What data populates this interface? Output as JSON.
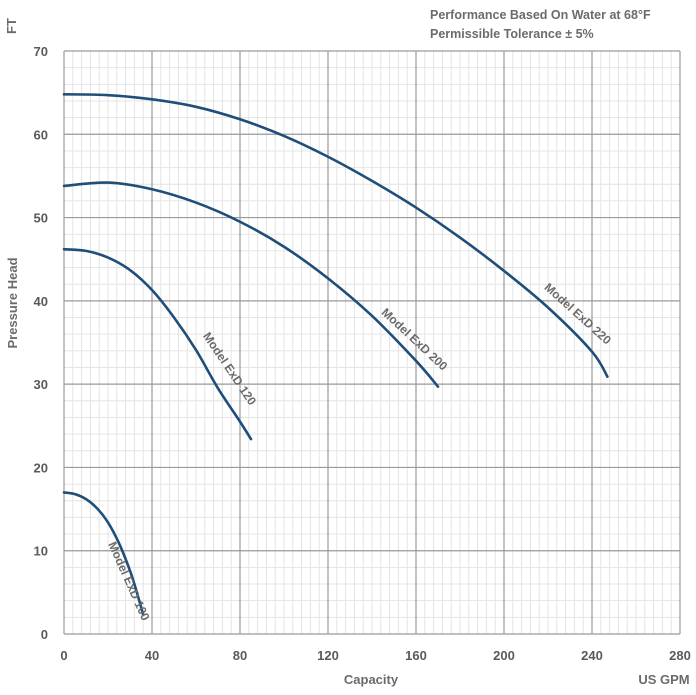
{
  "chart_data": {
    "type": "line",
    "notes": [
      "Performance Based On Water at 68°F",
      "Permissible Tolerance ± 5%"
    ],
    "xlabel": "Capacity",
    "x_unit": "US GPM",
    "ylabel": "Pressure Head",
    "y_unit": "FT",
    "xlim": [
      0,
      280
    ],
    "ylim": [
      0,
      70
    ],
    "x_ticks": [
      0,
      40,
      80,
      120,
      160,
      200,
      240,
      280
    ],
    "y_ticks": [
      0,
      10,
      20,
      30,
      40,
      50,
      60,
      70
    ],
    "grid": true,
    "series": [
      {
        "name": "Model ExD 100",
        "color": "#1f4e79",
        "x": [
          0,
          5,
          10,
          15,
          20,
          25,
          30,
          33,
          36
        ],
        "y": [
          17,
          16.8,
          16.2,
          15.1,
          13.4,
          10.9,
          7.6,
          5.1,
          2.3
        ]
      },
      {
        "name": "Model ExD 120",
        "color": "#1f4e79",
        "x": [
          0,
          10,
          20,
          30,
          40,
          50,
          60,
          70,
          80,
          85
        ],
        "y": [
          46.2,
          46,
          45.2,
          43.7,
          41.3,
          38,
          34.1,
          29.5,
          25.5,
          23.4
        ]
      },
      {
        "name": "Model ExD 200",
        "color": "#1f4e79",
        "x": [
          0,
          20,
          40,
          60,
          80,
          100,
          120,
          140,
          160,
          170
        ],
        "y": [
          53.8,
          54.2,
          53.4,
          51.8,
          49.5,
          46.5,
          42.7,
          38.2,
          32.8,
          29.7
        ]
      },
      {
        "name": "Model ExD 220",
        "color": "#1f4e79",
        "x": [
          0,
          20,
          40,
          60,
          80,
          100,
          120,
          140,
          160,
          180,
          200,
          220,
          240,
          247
        ],
        "y": [
          64.8,
          64.7,
          64.2,
          63.3,
          61.8,
          59.8,
          57.3,
          54.4,
          51.2,
          47.6,
          43.6,
          39.2,
          33.9,
          30.9
        ]
      }
    ]
  }
}
